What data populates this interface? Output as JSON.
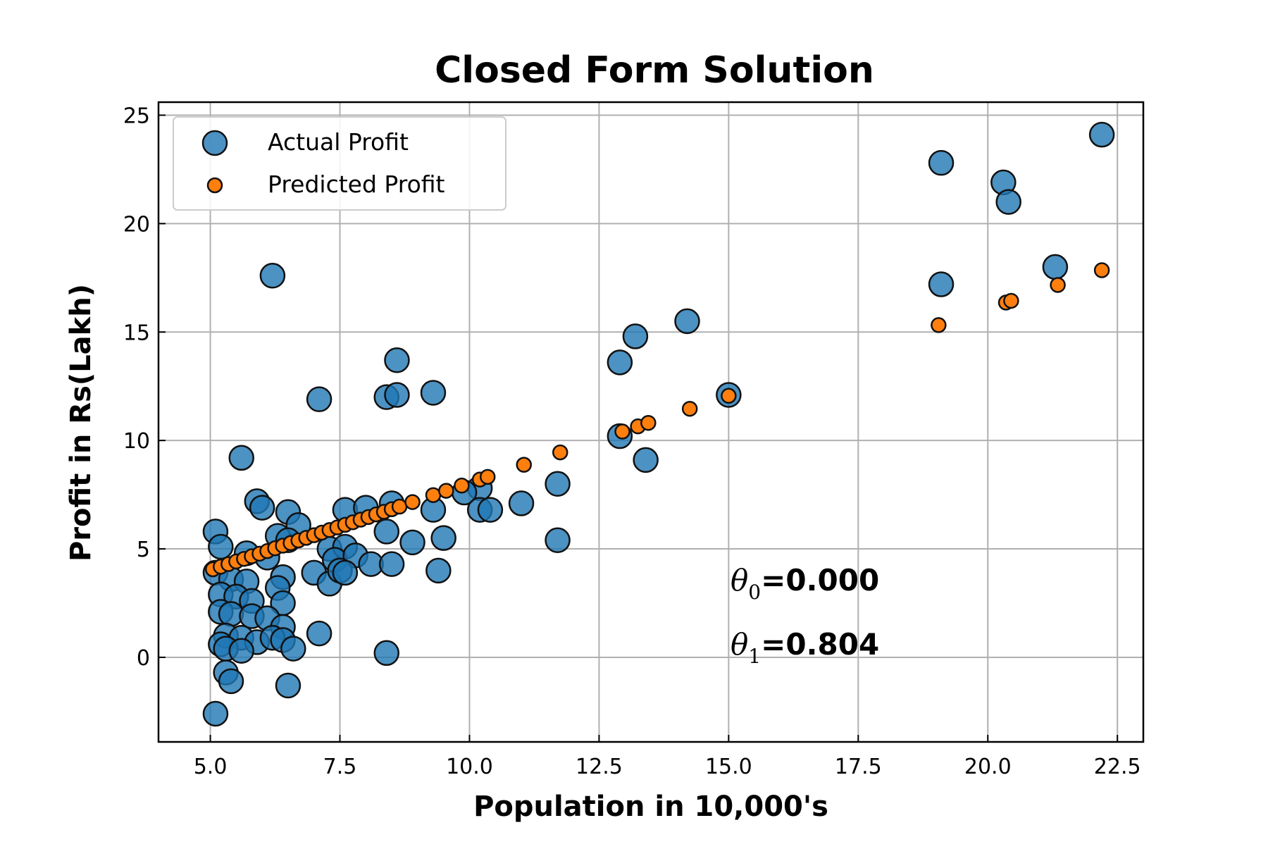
{
  "chart_data": {
    "type": "scatter",
    "title": "Closed Form Solution",
    "xlabel": "Population in 10,000's",
    "ylabel": "Profit in Rs(Lakh)",
    "xlim": [
      4.0,
      23.0
    ],
    "ylim": [
      -3.9,
      25.6
    ],
    "xticks": [
      5.0,
      7.5,
      10.0,
      12.5,
      15.0,
      17.5,
      20.0,
      22.5
    ],
    "xtick_labels": [
      "5.0",
      "7.5",
      "10.0",
      "12.5",
      "15.0",
      "17.5",
      "20.0",
      "22.5"
    ],
    "yticks": [
      0,
      5,
      10,
      15,
      20,
      25
    ],
    "ytick_labels": [
      "0",
      "5",
      "10",
      "15",
      "20",
      "25"
    ],
    "grid": true,
    "legend_position": "top-left",
    "annotations": [
      {
        "symbol": "θ",
        "subscript": "0",
        "text": "=0.000",
        "x": 15.0,
        "y": 3.0
      },
      {
        "symbol": "θ",
        "subscript": "1",
        "text": "=0.804",
        "x": 15.0,
        "y": 0.0
      }
    ],
    "series": [
      {
        "name": "Actual Profit",
        "color": "#1f77b4",
        "marker": "large-circle",
        "points": [
          [
            22.2,
            24.1
          ],
          [
            19.1,
            22.8
          ],
          [
            20.3,
            21.9
          ],
          [
            20.4,
            21.0
          ],
          [
            21.3,
            18.0
          ],
          [
            19.1,
            17.2
          ],
          [
            6.2,
            17.6
          ],
          [
            14.2,
            15.5
          ],
          [
            13.2,
            14.8
          ],
          [
            12.9,
            13.6
          ],
          [
            8.6,
            13.7
          ],
          [
            9.3,
            12.2
          ],
          [
            8.4,
            12.0
          ],
          [
            8.6,
            12.1
          ],
          [
            7.1,
            11.9
          ],
          [
            15.0,
            12.1
          ],
          [
            12.9,
            10.2
          ],
          [
            13.4,
            9.1
          ],
          [
            5.6,
            9.2
          ],
          [
            11.7,
            8.0
          ],
          [
            10.2,
            7.8
          ],
          [
            9.9,
            7.6
          ],
          [
            5.9,
            7.2
          ],
          [
            6.0,
            6.9
          ],
          [
            6.5,
            6.7
          ],
          [
            7.6,
            6.8
          ],
          [
            8.0,
            6.9
          ],
          [
            8.5,
            7.1
          ],
          [
            9.3,
            6.8
          ],
          [
            10.2,
            6.8
          ],
          [
            10.4,
            6.8
          ],
          [
            11.0,
            7.1
          ],
          [
            6.7,
            6.1
          ],
          [
            5.1,
            5.8
          ],
          [
            5.2,
            5.1
          ],
          [
            6.3,
            5.6
          ],
          [
            6.5,
            5.4
          ],
          [
            7.3,
            5.0
          ],
          [
            7.6,
            5.1
          ],
          [
            8.4,
            5.8
          ],
          [
            8.9,
            5.3
          ],
          [
            9.5,
            5.5
          ],
          [
            11.7,
            5.4
          ],
          [
            5.7,
            4.8
          ],
          [
            6.1,
            4.6
          ],
          [
            7.4,
            4.5
          ],
          [
            7.8,
            4.7
          ],
          [
            8.1,
            4.3
          ],
          [
            8.5,
            4.3
          ],
          [
            9.4,
            4.0
          ],
          [
            5.1,
            3.9
          ],
          [
            5.4,
            3.6
          ],
          [
            5.7,
            3.5
          ],
          [
            6.4,
            3.7
          ],
          [
            7.0,
            3.9
          ],
          [
            7.3,
            3.4
          ],
          [
            7.5,
            4.0
          ],
          [
            7.6,
            3.9
          ],
          [
            5.2,
            2.9
          ],
          [
            5.5,
            2.8
          ],
          [
            5.8,
            2.6
          ],
          [
            6.3,
            3.2
          ],
          [
            6.4,
            2.5
          ],
          [
            5.2,
            2.1
          ],
          [
            5.4,
            2.0
          ],
          [
            5.8,
            1.9
          ],
          [
            6.1,
            1.8
          ],
          [
            6.4,
            1.4
          ],
          [
            7.1,
            1.1
          ],
          [
            5.3,
            1.0
          ],
          [
            5.6,
            0.9
          ],
          [
            5.9,
            0.7
          ],
          [
            6.2,
            0.9
          ],
          [
            6.4,
            0.8
          ],
          [
            5.2,
            0.6
          ],
          [
            5.3,
            0.4
          ],
          [
            5.6,
            0.3
          ],
          [
            6.6,
            0.4
          ],
          [
            8.4,
            0.2
          ],
          [
            5.3,
            -0.7
          ],
          [
            5.4,
            -1.1
          ],
          [
            6.5,
            -1.3
          ],
          [
            5.1,
            -2.6
          ]
        ]
      },
      {
        "name": "Predicted Profit",
        "color": "#ff7f0e",
        "marker": "small-circle",
        "points": [
          [
            5.05,
            4.06
          ],
          [
            5.2,
            4.18
          ],
          [
            5.35,
            4.3
          ],
          [
            5.5,
            4.42
          ],
          [
            5.65,
            4.54
          ],
          [
            5.8,
            4.66
          ],
          [
            5.95,
            4.78
          ],
          [
            6.1,
            4.9
          ],
          [
            6.25,
            5.03
          ],
          [
            6.4,
            5.15
          ],
          [
            6.55,
            5.27
          ],
          [
            6.7,
            5.39
          ],
          [
            6.85,
            5.51
          ],
          [
            7.0,
            5.63
          ],
          [
            7.15,
            5.75
          ],
          [
            7.3,
            5.87
          ],
          [
            7.45,
            5.99
          ],
          [
            7.6,
            6.11
          ],
          [
            7.75,
            6.23
          ],
          [
            7.9,
            6.35
          ],
          [
            8.05,
            6.47
          ],
          [
            8.2,
            6.59
          ],
          [
            8.35,
            6.71
          ],
          [
            8.5,
            6.83
          ],
          [
            8.65,
            6.95
          ],
          [
            8.9,
            7.16
          ],
          [
            9.3,
            7.48
          ],
          [
            9.55,
            7.68
          ],
          [
            9.85,
            7.92
          ],
          [
            10.2,
            8.2
          ],
          [
            10.35,
            8.32
          ],
          [
            11.05,
            8.88
          ],
          [
            11.75,
            9.45
          ],
          [
            12.95,
            10.41
          ],
          [
            13.25,
            10.65
          ],
          [
            13.45,
            10.81
          ],
          [
            14.25,
            11.46
          ],
          [
            15.0,
            12.06
          ],
          [
            19.05,
            15.32
          ],
          [
            20.35,
            16.36
          ],
          [
            20.45,
            16.44
          ],
          [
            21.35,
            17.17
          ],
          [
            22.2,
            17.85
          ]
        ]
      }
    ]
  }
}
